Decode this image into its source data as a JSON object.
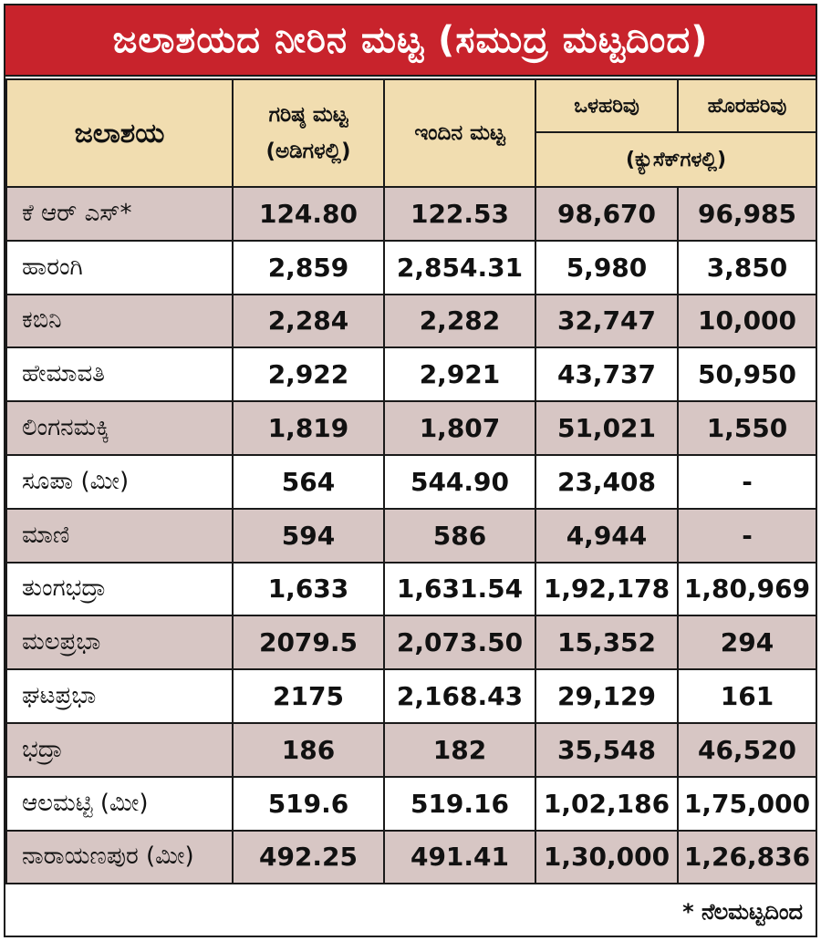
{
  "title": "ಜಲಾಶಯದ ನೀರಿನ ಮಟ್ಟ (ಸಮುದ್ರ ಮಟ್ಟದಿಂದ)",
  "headers": {
    "reservoir": "ಜಲಾಶಯ",
    "max_level": "ಗರಿಷ್ಠ ಮಟ್ಟ (ಅಡಿಗಳಲ್ಲಿ)",
    "current_level": "ಇಂದಿನ ಮಟ್ಟ",
    "inflow": "ಒಳಹರಿವು",
    "outflow": "ಹೊರಹರಿವು",
    "flow_unit": "(ಕ್ಯುಸೆಕ್‌ಗಳಲ್ಲಿ)"
  },
  "rows": [
    {
      "name": "ಕೆ ಆರ್ ಎಸ್*",
      "max": "124.80",
      "current": "122.53",
      "inflow": "98,670",
      "outflow": "96,985"
    },
    {
      "name": "ಹಾರಂಗಿ",
      "max": "2,859",
      "current": "2,854.31",
      "inflow": "5,980",
      "outflow": "3,850"
    },
    {
      "name": "ಕಬಿನಿ",
      "max": "2,284",
      "current": "2,282",
      "inflow": "32,747",
      "outflow": "10,000"
    },
    {
      "name": "ಹೇಮಾವತಿ",
      "max": "2,922",
      "current": "2,921",
      "inflow": "43,737",
      "outflow": "50,950"
    },
    {
      "name": "ಲಿಂಗನಮಕ್ಕಿ",
      "max": "1,819",
      "current": "1,807",
      "inflow": "51,021",
      "outflow": "1,550"
    },
    {
      "name": "ಸೂಪಾ (ಮೀ)",
      "max": "564",
      "current": "544.90",
      "inflow": "23,408",
      "outflow": "-"
    },
    {
      "name": "ಮಾಣಿ",
      "max": "594",
      "current": "586",
      "inflow": "4,944",
      "outflow": "-"
    },
    {
      "name": "ತುಂಗಭದ್ರಾ",
      "max": "1,633",
      "current": "1,631.54",
      "inflow": "1,92,178",
      "outflow": "1,80,969"
    },
    {
      "name": "ಮಲಪ್ರಭಾ",
      "max": "2079.5",
      "current": "2,073.50",
      "inflow": "15,352",
      "outflow": "294"
    },
    {
      "name": "ಘಟಪ್ರಭಾ",
      "max": "2175",
      "current": "2,168.43",
      "inflow": "29,129",
      "outflow": "161"
    },
    {
      "name": "ಭದ್ರಾ",
      "max": "186",
      "current": "182",
      "inflow": "35,548",
      "outflow": "46,520"
    },
    {
      "name": "ಆಲಮಟ್ಟಿ (ಮೀ)",
      "max": "519.6",
      "current": "519.16",
      "inflow": "1,02,186",
      "outflow": "1,75,000"
    },
    {
      "name": "ನಾರಾಯಣಪುರ (ಮೀ)",
      "max": "492.25",
      "current": "491.41",
      "inflow": "1,30,000",
      "outflow": "1,26,836"
    }
  ],
  "footnote": "* ನೆಲಮಟ್ಟದಿಂದ",
  "colors": {
    "title_bg": "#c8232c",
    "header_bg": "#f1ddb0",
    "shade_row": "#d7c6c4"
  }
}
